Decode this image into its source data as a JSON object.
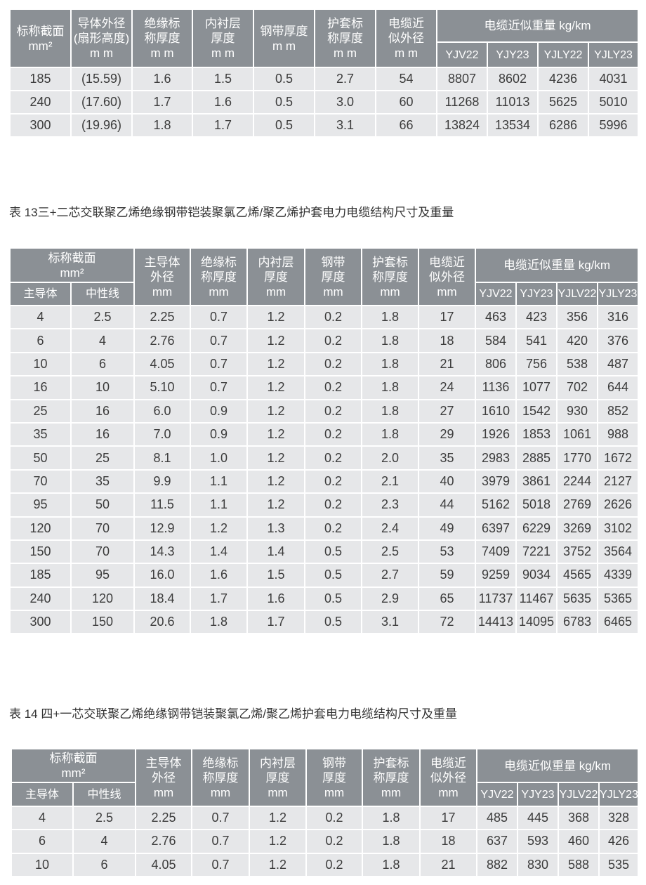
{
  "table1": {
    "headers": {
      "area": [
        "标称截面",
        "mm²"
      ],
      "conductor": [
        "导体外径",
        "(扇形高度)",
        "m m"
      ],
      "insulation": [
        "绝缘标",
        "称厚度",
        "m m"
      ],
      "lining": [
        "内衬层",
        "厚度",
        "m m"
      ],
      "steel": [
        "钢带厚度",
        "m m"
      ],
      "sheath": [
        "护套标",
        "称厚度",
        "m m"
      ],
      "diameter": [
        "电缆近",
        "似外径",
        "m m"
      ],
      "weight": "电缆近似重量 kg/km",
      "models": [
        "YJV22",
        "YJY23",
        "YJLY22",
        "YJLY23"
      ]
    },
    "rows": [
      [
        "185",
        "(15.59)",
        "1.6",
        "1.5",
        "0.5",
        "2.7",
        "54",
        "8807",
        "8602",
        "4236",
        "4031"
      ],
      [
        "240",
        "(17.60)",
        "1.7",
        "1.6",
        "0.5",
        "3.0",
        "60",
        "11268",
        "11013",
        "5625",
        "5010"
      ],
      [
        "300",
        "(19.96)",
        "1.8",
        "1.7",
        "0.5",
        "3.1",
        "66",
        "13824",
        "13534",
        "6286",
        "5996"
      ]
    ]
  },
  "table2": {
    "title": "表 13三+二芯交联聚乙烯绝缘钢带铠装聚氯乙烯/聚乙烯护套电力电缆结构尺寸及重量",
    "headers": {
      "area": [
        "标称截面",
        "mm²"
      ],
      "main": "主导体",
      "neutral": "中性线",
      "conductor": [
        "主导体",
        "外径",
        "mm"
      ],
      "insulation": [
        "绝缘标",
        "称厚度",
        "mm"
      ],
      "lining": [
        "内衬层",
        "厚度",
        "mm"
      ],
      "steel": [
        "钢带",
        "厚度",
        "mm"
      ],
      "sheath": [
        "护套标",
        "称厚度",
        "mm"
      ],
      "diameter": [
        "电缆近",
        "似外径",
        "mm"
      ],
      "weight": "电缆近似重量 kg/km",
      "models": [
        "YJV22",
        "YJY23",
        "YJLV22",
        "YJLY23"
      ]
    },
    "rows": [
      [
        "4",
        "2.5",
        "2.25",
        "0.7",
        "1.2",
        "0.2",
        "1.8",
        "17",
        "463",
        "423",
        "356",
        "316"
      ],
      [
        "6",
        "4",
        "2.76",
        "0.7",
        "1.2",
        "0.2",
        "1.8",
        "18",
        "584",
        "541",
        "420",
        "376"
      ],
      [
        "10",
        "6",
        "4.05",
        "0.7",
        "1.2",
        "0.2",
        "1.8",
        "21",
        "806",
        "756",
        "538",
        "487"
      ],
      [
        "16",
        "10",
        "5.10",
        "0.7",
        "1.2",
        "0.2",
        "1.8",
        "24",
        "1136",
        "1077",
        "702",
        "644"
      ],
      [
        "25",
        "16",
        "6.0",
        "0.9",
        "1.2",
        "0.2",
        "1.8",
        "27",
        "1610",
        "1542",
        "930",
        "852"
      ],
      [
        "35",
        "16",
        "7.0",
        "0.9",
        "1.2",
        "0.2",
        "1.8",
        "29",
        "1926",
        "1853",
        "1061",
        "988"
      ],
      [
        "50",
        "25",
        "8.1",
        "1.0",
        "1.2",
        "0.2",
        "2.0",
        "35",
        "2983",
        "2885",
        "1770",
        "1672"
      ],
      [
        "70",
        "35",
        "9.9",
        "1.1",
        "1.2",
        "0.2",
        "2.1",
        "40",
        "3979",
        "3861",
        "2244",
        "2127"
      ],
      [
        "95",
        "50",
        "11.5",
        "1.1",
        "1.2",
        "0.2",
        "2.3",
        "44",
        "5162",
        "5018",
        "2769",
        "2626"
      ],
      [
        "120",
        "70",
        "12.9",
        "1.2",
        "1.3",
        "0.2",
        "2.4",
        "49",
        "6397",
        "6229",
        "3269",
        "3102"
      ],
      [
        "150",
        "70",
        "14.3",
        "1.4",
        "1.4",
        "0.5",
        "2.5",
        "53",
        "7409",
        "7221",
        "3752",
        "3564"
      ],
      [
        "185",
        "95",
        "16.0",
        "1.6",
        "1.5",
        "0.5",
        "2.7",
        "59",
        "9259",
        "9034",
        "4565",
        "4339"
      ],
      [
        "240",
        "120",
        "18.4",
        "1.7",
        "1.6",
        "0.5",
        "2.9",
        "65",
        "11737",
        "11467",
        "5635",
        "5365"
      ],
      [
        "300",
        "150",
        "20.6",
        "1.8",
        "1.7",
        "0.5",
        "3.1",
        "72",
        "14413",
        "14095",
        "6783",
        "6465"
      ]
    ]
  },
  "table3": {
    "title": "表 14 四+一芯交联聚乙烯绝缘钢带铠装聚氯乙烯/聚乙烯护套电力电缆结构尺寸及重量",
    "headers": {
      "area": [
        "标称截面",
        "mm²"
      ],
      "main": "主导体",
      "neutral": "中性线",
      "conductor": [
        "主导体",
        "外径",
        "mm"
      ],
      "insulation": [
        "绝缘标",
        "称厚度",
        "mm"
      ],
      "lining": [
        "内衬层",
        "厚度",
        "mm"
      ],
      "steel": [
        "钢带",
        "厚度",
        "mm"
      ],
      "sheath": [
        "护套标",
        "称厚度",
        "mm"
      ],
      "diameter": [
        "电缆近",
        "似外径",
        "mm"
      ],
      "weight": "电缆近似重量 kg/km",
      "models": [
        "YJV22",
        "YJY23",
        "YJLV22",
        "YJLY23"
      ]
    },
    "rows": [
      [
        "4",
        "2.5",
        "2.25",
        "0.7",
        "1.2",
        "0.2",
        "1.8",
        "17",
        "485",
        "445",
        "368",
        "328"
      ],
      [
        "6",
        "4",
        "2.76",
        "0.7",
        "1.2",
        "0.2",
        "1.8",
        "18",
        "637",
        "593",
        "460",
        "426"
      ],
      [
        "10",
        "6",
        "4.05",
        "0.7",
        "1.2",
        "0.2",
        "1.8",
        "21",
        "882",
        "830",
        "588",
        "535"
      ]
    ]
  },
  "colors": {
    "header_bg": "#8b9095",
    "row_bg": "#e6e7e9",
    "grid": "#ffffff"
  }
}
